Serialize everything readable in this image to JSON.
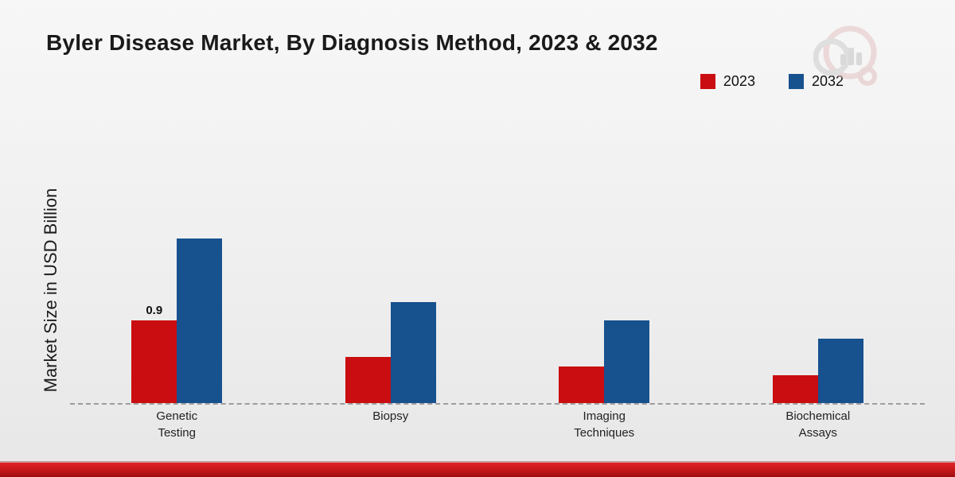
{
  "title": "Byler Disease Market, By Diagnosis Method, 2023 & 2032",
  "y_axis_label": "Market Size in USD Billion",
  "legend": {
    "items": [
      {
        "label": "2023",
        "color": "#c90d10"
      },
      {
        "label": "2032",
        "color": "#17518e"
      }
    ]
  },
  "colors": {
    "series_2023": "#c90d10",
    "series_2032": "#17518e",
    "baseline": "#9d9d9d",
    "bottom_band": "#c3161b"
  },
  "chart_data": {
    "type": "bar",
    "title": "Byler Disease Market, By Diagnosis Method, 2023 & 2032",
    "categories": [
      "Genetic\nTesting",
      "Biopsy",
      "Imaging\nTechniques",
      "Biochemical\nAssays"
    ],
    "series": [
      {
        "name": "2023",
        "color": "#c90d10",
        "values": [
          0.9,
          0.5,
          0.4,
          0.3
        ],
        "value_labels": [
          "0.9",
          "",
          "",
          ""
        ]
      },
      {
        "name": "2032",
        "color": "#17518e",
        "values": [
          1.8,
          1.1,
          0.9,
          0.7
        ],
        "value_labels": [
          "",
          "",
          "",
          ""
        ]
      }
    ],
    "xlabel": "",
    "ylabel": "Market Size in USD Billion",
    "ylim": [
      0,
      3.1
    ],
    "grid": false,
    "baseline_style": "dashed",
    "legend_position": "top-right"
  }
}
